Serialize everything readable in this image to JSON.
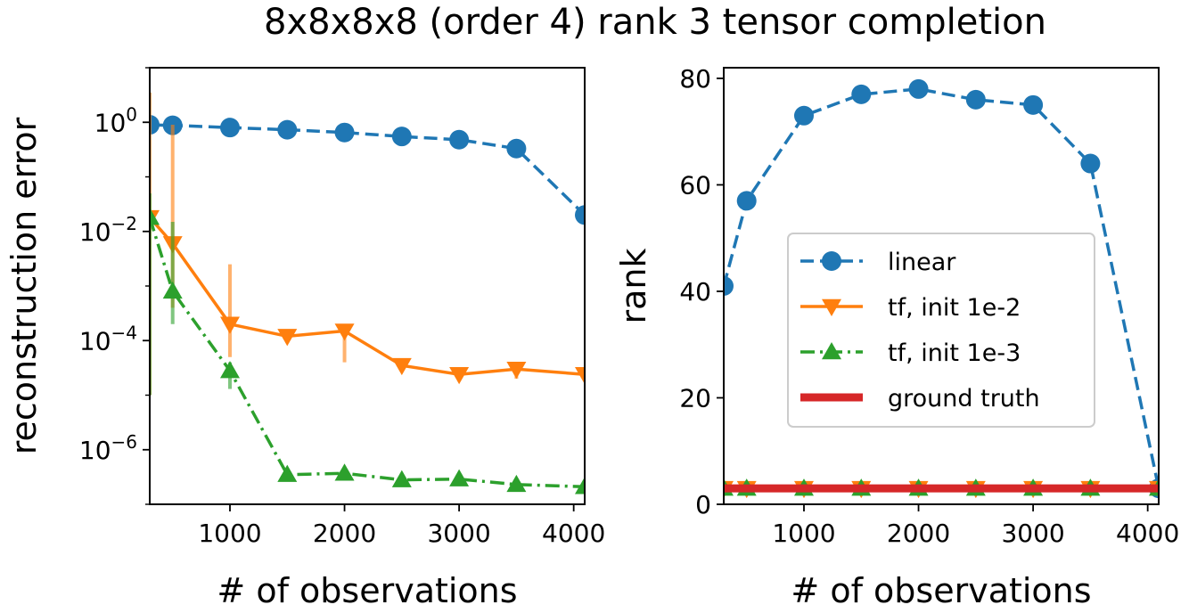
{
  "title": "8x8x8x8 (order 4) rank 3 tensor completion",
  "colors": {
    "linear": "#1f77b4",
    "tf_1e2": "#ff7f0e",
    "tf_1e3": "#2ca02c",
    "truth": "#d62728"
  },
  "chart_data": [
    {
      "type": "line",
      "id": "error",
      "yscale": "log",
      "xlabel": "# of observations",
      "ylabel": "reconstruction error",
      "xlim": [
        300,
        4096
      ],
      "ylim": [
        1e-07,
        10
      ],
      "xticks": [
        1000,
        2000,
        3000,
        4000
      ],
      "xtick_labels": [
        "1000",
        "2000",
        "3000",
        "4000"
      ],
      "yticks": [
        1,
        0.01,
        0.0001,
        1e-06
      ],
      "ytick_labels": [
        {
          "base": "10",
          "exp": "0"
        },
        {
          "base": "10",
          "exp": "−2"
        },
        {
          "base": "10",
          "exp": "−4"
        },
        {
          "base": "10",
          "exp": "−6"
        }
      ],
      "x": [
        300,
        500,
        1000,
        1500,
        2000,
        2500,
        3000,
        3500,
        4096
      ],
      "series": [
        {
          "name": "linear",
          "key": "linear",
          "marker": "circle",
          "dash": "dashed",
          "values": [
            0.9,
            0.88,
            0.8,
            0.73,
            0.65,
            0.55,
            0.48,
            0.33,
            0.02
          ]
        },
        {
          "name": "tf, init 1e-2",
          "key": "tf_1e2",
          "marker": "triangle-down",
          "dash": "solid",
          "values": [
            0.018,
            0.006,
            0.0002,
            0.00012,
            0.00015,
            3.5e-05,
            2.4e-05,
            3e-05,
            2.4e-05
          ],
          "error_low": [
            1e-05,
            0.0004,
            5e-05,
            9e-05,
            4e-05,
            3e-05,
            2e-05,
            2e-05,
            2e-05
          ],
          "error_high": [
            3.5,
            0.9,
            0.0025,
            0.00015,
            0.0002,
            4e-05,
            2.6e-05,
            3.5e-05,
            2.6e-05
          ]
        },
        {
          "name": "tf, init 1e-3",
          "key": "tf_1e3",
          "marker": "triangle-up",
          "dash": "dashdot",
          "values": [
            0.018,
            0.0008,
            2.8e-05,
            3.5e-07,
            3.7e-07,
            2.8e-07,
            2.9e-07,
            2.3e-07,
            2.1e-07
          ],
          "error_low": [
            1e-05,
            0.0002,
            1.3e-05,
            3e-07,
            3.2e-07,
            2.5e-07,
            2.6e-07,
            2e-07,
            1.9e-07
          ],
          "error_high": [
            0.05,
            0.015,
            4e-05,
            4e-07,
            4.2e-07,
            3e-07,
            3.2e-07,
            2.6e-07,
            2.3e-07
          ]
        }
      ]
    },
    {
      "type": "line",
      "id": "rank",
      "yscale": "linear",
      "xlabel": "# of observations",
      "ylabel": "rank",
      "xlim": [
        300,
        4096
      ],
      "ylim": [
        0,
        82
      ],
      "xticks": [
        1000,
        2000,
        3000,
        4000
      ],
      "xtick_labels": [
        "1000",
        "2000",
        "3000",
        "4000"
      ],
      "yticks": [
        0,
        20,
        40,
        60,
        80
      ],
      "ytick_labels": [
        "0",
        "20",
        "40",
        "60",
        "80"
      ],
      "x": [
        300,
        500,
        1000,
        1500,
        2000,
        2500,
        3000,
        3500,
        4096
      ],
      "series": [
        {
          "name": "linear",
          "key": "linear",
          "marker": "circle",
          "dash": "dashed",
          "values": [
            41,
            57,
            73,
            77,
            78,
            76,
            75,
            64,
            3
          ]
        },
        {
          "name": "tf, init 1e-2",
          "key": "tf_1e2",
          "marker": "triangle-down",
          "dash": "solid",
          "values": [
            3,
            3,
            3,
            3,
            3,
            3,
            3,
            3,
            3
          ]
        },
        {
          "name": "tf, init 1e-3",
          "key": "tf_1e3",
          "marker": "triangle-up",
          "dash": "dashdot",
          "values": [
            3,
            3,
            3,
            3,
            3,
            3,
            3,
            3,
            3
          ]
        },
        {
          "name": "ground truth",
          "key": "truth",
          "marker": "none",
          "dash": "thick",
          "values": [
            3,
            3,
            3,
            3,
            3,
            3,
            3,
            3,
            3
          ]
        }
      ],
      "legend": {
        "position": "center-right",
        "entries": [
          {
            "label": "linear",
            "key": "linear",
            "marker": "circle",
            "dash": "dashed"
          },
          {
            "label": "tf, init 1e-2",
            "key": "tf_1e2",
            "marker": "triangle-down",
            "dash": "solid"
          },
          {
            "label": "tf, init 1e-3",
            "key": "tf_1e3",
            "marker": "triangle-up",
            "dash": "dashdot"
          },
          {
            "label": "ground truth",
            "key": "truth",
            "marker": "none",
            "dash": "thick"
          }
        ]
      }
    }
  ]
}
